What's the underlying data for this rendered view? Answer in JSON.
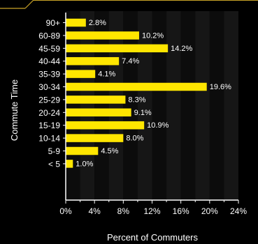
{
  "chart_data": {
    "type": "bar",
    "orientation": "horizontal",
    "categories": [
      "90+",
      "60-89",
      "45-59",
      "40-44",
      "35-39",
      "30-34",
      "25-29",
      "20-24",
      "15-19",
      "10-14",
      "5-9",
      "< 5"
    ],
    "values": [
      2.8,
      10.2,
      14.2,
      7.4,
      4.1,
      19.6,
      8.3,
      9.1,
      10.9,
      8.0,
      4.5,
      1.0
    ],
    "value_labels": [
      "2.8%",
      "10.2%",
      "14.2%",
      "7.4%",
      "4.1%",
      "19.6%",
      "8.3%",
      "9.1%",
      "10.9%",
      "8.0%",
      "4.5%",
      "1.0%"
    ],
    "xlabel": "Percent of Commuters",
    "ylabel": "Commute Time",
    "xlim": [
      0,
      24
    ],
    "x_ticks": [
      "0%",
      "4%",
      "8%",
      "12%",
      "16%",
      "20%",
      "24%"
    ],
    "grid": "alternating vertical bands",
    "colors": {
      "background": "#000000",
      "bar": "#ffe600",
      "band_dark": "#0c0c0c",
      "band_light": "#161616",
      "axis": "#ffffff",
      "accent_line": "#c9a227",
      "text": "#ffffff"
    }
  }
}
